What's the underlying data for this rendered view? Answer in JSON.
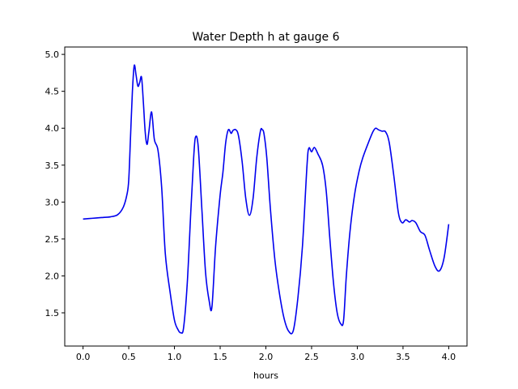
{
  "chart_data": {
    "type": "line",
    "title": "Water Depth h at gauge 6",
    "xlabel": "hours",
    "ylabel": "",
    "xlim": [
      -0.2,
      4.2
    ],
    "ylim": [
      1.05,
      5.1
    ],
    "xticks": [
      0.0,
      0.5,
      1.0,
      1.5,
      2.0,
      2.5,
      3.0,
      3.5,
      4.0
    ],
    "xtick_labels": [
      "0.0",
      "0.5",
      "1.0",
      "1.5",
      "2.0",
      "2.5",
      "3.0",
      "3.5",
      "4.0"
    ],
    "yticks": [
      1.5,
      2.0,
      2.5,
      3.0,
      3.5,
      4.0,
      4.5,
      5.0
    ],
    "ytick_labels": [
      "1.5",
      "2.0",
      "2.5",
      "3.0",
      "3.5",
      "4.0",
      "4.5",
      "5.0"
    ],
    "grid": false,
    "series": [
      {
        "color": "#0000ee",
        "x": [
          0.0,
          0.1,
          0.2,
          0.3,
          0.38,
          0.44,
          0.48,
          0.5,
          0.52,
          0.54,
          0.56,
          0.58,
          0.6,
          0.62,
          0.64,
          0.66,
          0.68,
          0.7,
          0.72,
          0.75,
          0.78,
          0.82,
          0.86,
          0.9,
          0.95,
          1.0,
          1.04,
          1.07,
          1.1,
          1.14,
          1.18,
          1.21,
          1.23,
          1.26,
          1.3,
          1.34,
          1.38,
          1.41,
          1.45,
          1.5,
          1.53,
          1.56,
          1.59,
          1.62,
          1.64,
          1.67,
          1.7,
          1.74,
          1.78,
          1.82,
          1.86,
          1.9,
          1.94,
          1.96,
          1.98,
          2.01,
          2.05,
          2.1,
          2.15,
          2.2,
          2.25,
          2.3,
          2.35,
          2.4,
          2.45,
          2.47,
          2.5,
          2.53,
          2.57,
          2.62,
          2.66,
          2.7,
          2.74,
          2.78,
          2.82,
          2.85,
          2.88,
          2.92,
          2.97,
          3.02,
          3.06,
          3.12,
          3.17,
          3.2,
          3.23,
          3.27,
          3.31,
          3.35,
          3.4,
          3.45,
          3.49,
          3.53,
          3.57,
          3.6,
          3.64,
          3.69,
          3.74,
          3.79,
          3.85,
          3.9,
          3.95,
          4.0
        ],
        "y": [
          2.77,
          2.78,
          2.79,
          2.8,
          2.83,
          2.93,
          3.1,
          3.3,
          3.9,
          4.5,
          4.85,
          4.72,
          4.57,
          4.62,
          4.69,
          4.35,
          3.95,
          3.78,
          3.95,
          4.22,
          3.85,
          3.7,
          3.2,
          2.3,
          1.8,
          1.4,
          1.27,
          1.23,
          1.3,
          1.9,
          2.9,
          3.6,
          3.88,
          3.75,
          2.9,
          2.05,
          1.66,
          1.58,
          2.4,
          3.1,
          3.4,
          3.8,
          3.98,
          3.93,
          3.97,
          3.98,
          3.9,
          3.55,
          3.05,
          2.82,
          3.05,
          3.6,
          3.96,
          3.98,
          3.92,
          3.6,
          2.9,
          2.2,
          1.75,
          1.42,
          1.25,
          1.26,
          1.7,
          2.4,
          3.5,
          3.73,
          3.68,
          3.74,
          3.65,
          3.5,
          3.15,
          2.5,
          1.9,
          1.5,
          1.35,
          1.4,
          2.0,
          2.6,
          3.1,
          3.42,
          3.6,
          3.8,
          3.95,
          4.0,
          3.98,
          3.96,
          3.95,
          3.8,
          3.35,
          2.85,
          2.72,
          2.76,
          2.73,
          2.75,
          2.72,
          2.6,
          2.55,
          2.35,
          2.13,
          2.07,
          2.25,
          2.7
        ]
      }
    ]
  }
}
